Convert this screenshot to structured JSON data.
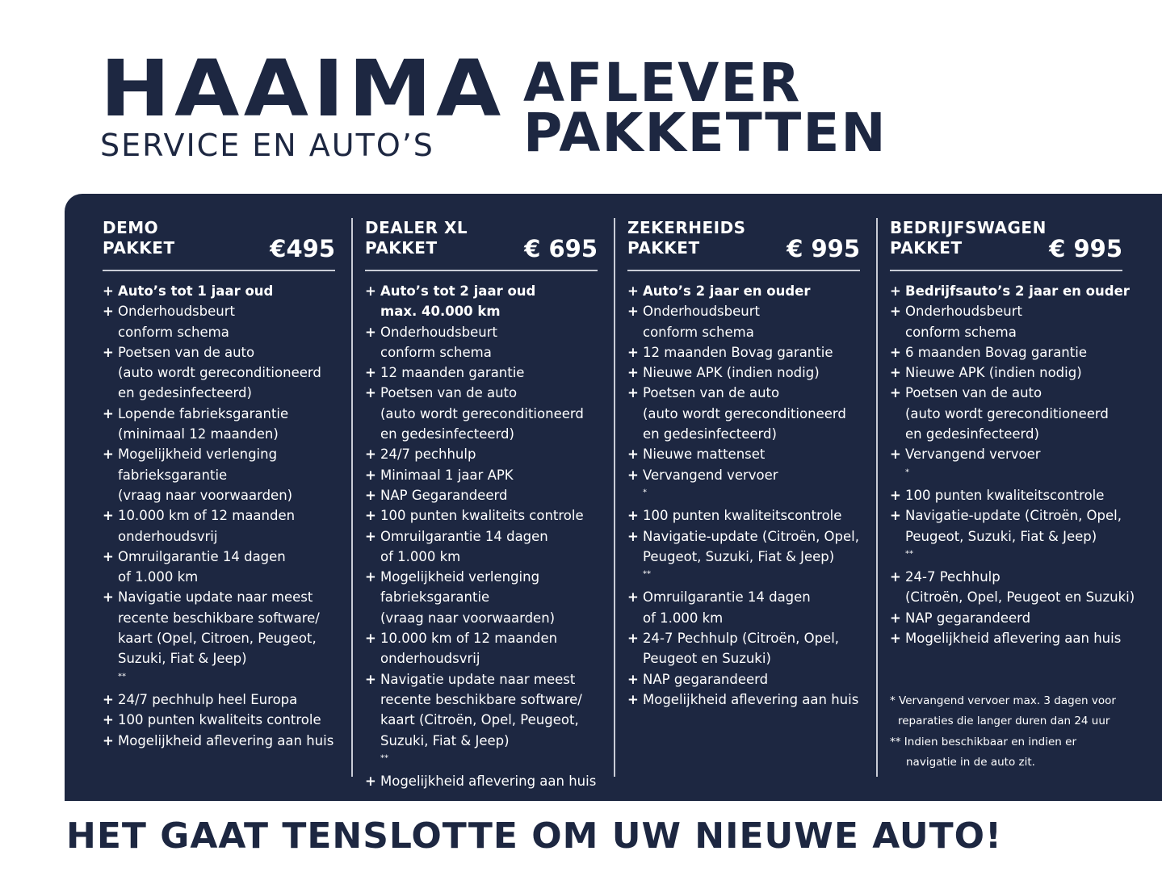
{
  "brand": {
    "name": "HAAIMA",
    "subtitle": "SERVICE EN AUTO’S"
  },
  "title": {
    "line1": "AFLEVER",
    "line2": "PAKKETTEN"
  },
  "colors": {
    "panel": "#1d2741",
    "text": "#ffffff"
  },
  "packages": [
    {
      "name1": "DEMO",
      "name2": "PAKKET",
      "price": "€495",
      "items": [
        {
          "lines": [
            "Auto’s tot 1 jaar oud"
          ],
          "bold": true
        },
        {
          "lines": [
            "Onderhoudsbeurt",
            "conform schema"
          ]
        },
        {
          "lines": [
            "Poetsen van de auto",
            "(auto wordt gereconditioneerd",
            "en gedesinfecteerd)"
          ]
        },
        {
          "lines": [
            "Lopende fabrieksgarantie",
            "(minimaal 12 maanden)"
          ]
        },
        {
          "lines": [
            "Mogelijkheid verlenging",
            "fabrieksgarantie",
            "(vraag naar voorwaarden)"
          ]
        },
        {
          "lines": [
            "10.000 km of 12 maanden",
            "onderhoudsvrij"
          ]
        },
        {
          "lines": [
            "Omruilgarantie 14 dagen",
            "of 1.000 km"
          ]
        },
        {
          "lines": [
            "Navigatie update naar meest",
            "recente beschikbare software/",
            "kaart (Opel, Citroen,  Peugeot,",
            "Suzuki, Fiat & Jeep)"
          ],
          "sup": "**"
        },
        {
          "lines": [
            "24/7 pechhulp heel Europa"
          ]
        },
        {
          "lines": [
            "100 punten kwaliteits controle"
          ]
        },
        {
          "lines": [
            "Mogelijkheid aflevering aan huis"
          ]
        }
      ]
    },
    {
      "name1": "DEALER XL",
      "name2": "PAKKET",
      "price": "€ 695",
      "items": [
        {
          "lines": [
            "Auto’s tot 2 jaar oud",
            "max. 40.000 km"
          ],
          "bold": true
        },
        {
          "lines": [
            "Onderhoudsbeurt",
            "conform schema"
          ]
        },
        {
          "lines": [
            "12 maanden garantie"
          ]
        },
        {
          "lines": [
            "Poetsen van de auto",
            "(auto wordt gereconditioneerd",
            "en gedesinfecteerd)"
          ]
        },
        {
          "lines": [
            "24/7 pechhulp"
          ]
        },
        {
          "lines": [
            "Minimaal 1 jaar APK"
          ]
        },
        {
          "lines": [
            "NAP Gegarandeerd"
          ]
        },
        {
          "lines": [
            "100 punten kwaliteits controle"
          ]
        },
        {
          "lines": [
            "Omruilgarantie 14 dagen",
            "of 1.000 km"
          ]
        },
        {
          "lines": [
            "Mogelijkheid verlenging",
            "fabrieksgarantie",
            "(vraag naar voorwaarden)"
          ]
        },
        {
          "lines": [
            "10.000 km of 12 maanden",
            "onderhoudsvrij"
          ]
        },
        {
          "lines": [
            "Navigatie update naar meest",
            "recente beschikbare software/",
            "kaart (Citroën, Opel, Peugeot,",
            "Suzuki, Fiat & Jeep)"
          ],
          "sup": "**"
        },
        {
          "lines": [
            "Mogelijkheid aflevering aan huis"
          ]
        }
      ]
    },
    {
      "name1": "ZEKERHEIDS",
      "name2": "PAKKET",
      "price": "€ 995",
      "items": [
        {
          "lines": [
            "Auto’s 2 jaar en ouder"
          ],
          "bold": true
        },
        {
          "lines": [
            "Onderhoudsbeurt",
            "conform schema"
          ]
        },
        {
          "lines": [
            "12 maanden Bovag garantie"
          ]
        },
        {
          "lines": [
            "Nieuwe APK (indien nodig)"
          ]
        },
        {
          "lines": [
            "Poetsen van de auto",
            "(auto wordt gereconditioneerd",
            "en gedesinfecteerd)"
          ]
        },
        {
          "lines": [
            "Nieuwe mattenset"
          ]
        },
        {
          "lines": [
            "Vervangend vervoer"
          ],
          "sup": "*"
        },
        {
          "lines": [
            "100 punten kwaliteitscontrole"
          ]
        },
        {
          "lines": [
            "Navigatie-update (Citroën, Opel,",
            "Peugeot, Suzuki, Fiat & Jeep)"
          ],
          "sup": "**"
        },
        {
          "lines": [
            "Omruilgarantie 14 dagen",
            "of 1.000 km"
          ]
        },
        {
          "lines": [
            "24-7 Pechhulp (Citroën, Opel,",
            "Peugeot en Suzuki)"
          ]
        },
        {
          "lines": [
            "NAP gegarandeerd"
          ]
        },
        {
          "lines": [
            "Mogelijkheid aflevering aan huis"
          ]
        }
      ]
    },
    {
      "name1": "BEDRIJFSWAGEN",
      "name2": "PAKKET",
      "price": "€ 995",
      "items": [
        {
          "lines": [
            "Bedrijfsauto’s 2 jaar en ouder"
          ],
          "bold": true
        },
        {
          "lines": [
            "Onderhoudsbeurt",
            "conform schema"
          ]
        },
        {
          "lines": [
            "6 maanden Bovag garantie"
          ]
        },
        {
          "lines": [
            "Nieuwe APK (indien nodig)"
          ]
        },
        {
          "lines": [
            "Poetsen van de auto",
            "(auto wordt gereconditioneerd",
            "en gedesinfecteerd)"
          ]
        },
        {
          "lines": [
            "Vervangend vervoer"
          ],
          "sup": "*"
        },
        {
          "lines": [
            "100 punten kwaliteitscontrole"
          ]
        },
        {
          "lines": [
            "Navigatie-update (Citroën, Opel,",
            "Peugeot, Suzuki, Fiat & Jeep)"
          ],
          "sup": "**"
        },
        {
          "lines": [
            "24-7 Pechhulp",
            "(Citroën, Opel, Peugeot en Suzuki)"
          ]
        },
        {
          "lines": [
            "NAP gegarandeerd"
          ]
        },
        {
          "lines": [
            "Mogelijkheid aflevering aan huis"
          ]
        }
      ]
    }
  ],
  "bullet": "+",
  "notes": {
    "n1a": "* Vervangend vervoer max. 3 dagen voor",
    "n1b": "reparaties die langer duren dan 24 uur",
    "n2a": "** Indien beschikbaar en indien er",
    "n2b": "navigatie in de auto zit."
  },
  "footer": "HET GAAT TENSLOTTE OM UW NIEUWE AUTO!"
}
